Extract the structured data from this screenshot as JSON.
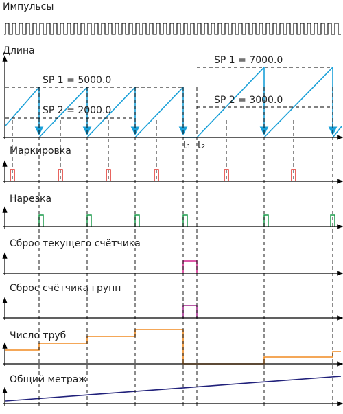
{
  "panels": [
    {
      "label": "Импульсы"
    },
    {
      "label": "Длина"
    },
    {
      "label": "Маркировка"
    },
    {
      "label": "Нарезка"
    },
    {
      "label": "Сброс текущего счётчика"
    },
    {
      "label": "Сброс счётчика групп"
    },
    {
      "label": "Число труб"
    },
    {
      "label": "Общий метраж"
    }
  ],
  "annotations": {
    "sp1_a": "SP 1 = 5000.0",
    "sp2_a": "SP 2 = 2000.0",
    "sp1_b": "SP 1 = 7000.0",
    "sp2_b": "SP 2 = 3000.0",
    "t1": "t₁",
    "t2": "t₂"
  }
}
